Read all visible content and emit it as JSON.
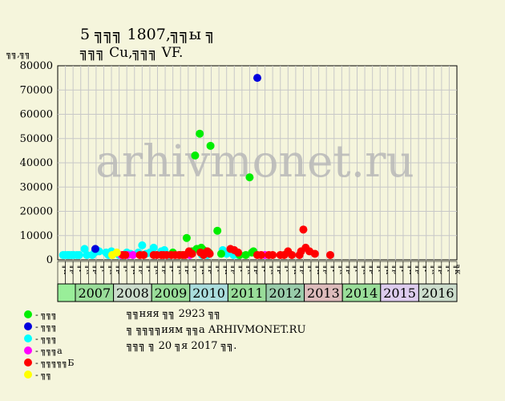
{
  "header": {
    "title_line1": "5 ╗╗╗ 1807,╗╗ы ╗",
    "title_line2": "╗╗╗ Cu,╗╗╗ VF.",
    "y_unit": "╗╗,╗╗",
    "watermark": "arhivmonet.ru"
  },
  "legend": [
    {
      "label": "- ╗╗╗",
      "color": "#00ee00"
    },
    {
      "label": "- ╗╗╗",
      "color": "#0000dd"
    },
    {
      "label": "- ╗╗╗",
      "color": "#00ffff"
    },
    {
      "label": "- ╗╗╗а",
      "color": "#ff00ff"
    },
    {
      "label": "- ╗╗╗╗╗Б",
      "color": "#ff0000"
    },
    {
      "label": "- ╗╗",
      "color": "#ffff00"
    }
  ],
  "notes": [
    "╗╗няя ╗╗ 2923 ╗╗",
    "╗ ╗╗╗╗иям ╗╗а ARHIVMONET.RU",
    "╗╗╗ ╗ 20 ╗я 2017 ╗╗."
  ],
  "chart_data": {
    "type": "scatter",
    "ylim": [
      0,
      80000
    ],
    "y_ticks": [
      0,
      10000,
      20000,
      30000,
      40000,
      50000,
      60000,
      70000,
      80000
    ],
    "quarter_labels": [
      "╗к",
      "╗р",
      "╗г",
      "╗к",
      "╗р",
      "╗г",
      "╗к",
      "╗р",
      "╗г",
      "╗к",
      "╗р",
      "╗г",
      "╗к",
      "╗р",
      "╗г",
      "╗к",
      "╗р",
      "╗г",
      "╗к",
      "╗р",
      "╗г",
      "╗к",
      "╗р",
      "╗г",
      "╗к",
      "╗р",
      "╗г",
      "╗к",
      "╗р",
      "╗г",
      "╗к",
      "╗р",
      "╗г",
      "╗к",
      "╗р",
      "╗г",
      "╗к",
      "╗р",
      "╗г",
      "╗к",
      "╗р",
      "╗г",
      "╗к",
      "╗р",
      "╗г",
      "╗к",
      "╗р",
      "╗г",
      "╗к",
      "╗р",
      "╗г",
      "╗к"
    ],
    "years": [
      {
        "label": "",
        "color": "#99ee99"
      },
      {
        "label": "2007",
        "color": "#99dd99"
      },
      {
        "label": "2008",
        "color": "#ccddcc"
      },
      {
        "label": "2009",
        "color": "#99dd99"
      },
      {
        "label": "2010",
        "color": "#aadddd"
      },
      {
        "label": "2011",
        "color": "#99dd99"
      },
      {
        "label": "2012",
        "color": "#99ccaa"
      },
      {
        "label": "2013",
        "color": "#ddbbbb"
      },
      {
        "label": "2014",
        "color": "#99dd99"
      },
      {
        "label": "2015",
        "color": "#ddccee"
      },
      {
        "label": "2016",
        "color": "#ccddcc"
      }
    ],
    "series": [
      {
        "color": "#00ffff",
        "points": [
          [
            0.2,
            2000
          ],
          [
            0.5,
            2000
          ],
          [
            0.8,
            2000
          ],
          [
            1.0,
            2000
          ],
          [
            1.3,
            2000
          ],
          [
            1.6,
            2000
          ],
          [
            2.0,
            2000
          ],
          [
            2.3,
            2000
          ],
          [
            3.0,
            4500
          ],
          [
            3.3,
            2000
          ],
          [
            4.0,
            2000
          ],
          [
            4.3,
            3000
          ],
          [
            4.6,
            4000
          ],
          [
            4.9,
            3500
          ],
          [
            5.8,
            3000
          ],
          [
            6.1,
            2000
          ],
          [
            6.5,
            3500
          ],
          [
            7.5,
            2000
          ],
          [
            8.5,
            3000
          ],
          [
            9.0,
            2500
          ],
          [
            10.0,
            3000
          ],
          [
            10.5,
            6000
          ],
          [
            11.0,
            2500
          ],
          [
            11.5,
            3000
          ],
          [
            12.0,
            5000
          ],
          [
            13.0,
            3500
          ],
          [
            13.4,
            4000
          ],
          [
            14.0,
            2000
          ],
          [
            18.3,
            2000
          ],
          [
            18.7,
            3000
          ],
          [
            19.0,
            2000
          ],
          [
            21.0,
            4000
          ],
          [
            21.5,
            2500
          ],
          [
            22.0,
            3000
          ],
          [
            22.4,
            2000
          ],
          [
            23.0,
            2000
          ]
        ]
      },
      {
        "color": "#00ee00",
        "points": [
          [
            14.5,
            3000
          ],
          [
            15.5,
            2000
          ],
          [
            16.3,
            9000
          ],
          [
            17.0,
            3500
          ],
          [
            17.4,
            43000
          ],
          [
            17.6,
            4500
          ],
          [
            18.0,
            52000
          ],
          [
            18.2,
            5000
          ],
          [
            18.5,
            4000
          ],
          [
            19.2,
            3000
          ],
          [
            19.4,
            47000
          ],
          [
            20.3,
            12000
          ],
          [
            20.8,
            2500
          ],
          [
            23.2,
            2000
          ],
          [
            24.0,
            2000
          ],
          [
            24.5,
            34000
          ],
          [
            24.8,
            3000
          ],
          [
            25.0,
            3500
          ]
        ]
      },
      {
        "color": "#ff00ff",
        "points": [
          [
            7.8,
            2000
          ],
          [
            8.6,
            2000
          ],
          [
            9.3,
            2000
          ],
          [
            16.7,
            2000
          ],
          [
            26.5,
            2000
          ]
        ]
      },
      {
        "color": "#ff0000",
        "points": [
          [
            8.0,
            2000
          ],
          [
            8.3,
            2000
          ],
          [
            10.2,
            2000
          ],
          [
            10.7,
            2000
          ],
          [
            12.0,
            2000
          ],
          [
            12.4,
            2000
          ],
          [
            13.0,
            2000
          ],
          [
            13.3,
            2000
          ],
          [
            13.7,
            2000
          ],
          [
            14.3,
            2000
          ],
          [
            14.8,
            2000
          ],
          [
            15.3,
            2000
          ],
          [
            15.8,
            2000
          ],
          [
            16.1,
            2000
          ],
          [
            16.6,
            3500
          ],
          [
            17.0,
            2500
          ],
          [
            18.1,
            3000
          ],
          [
            18.5,
            2000
          ],
          [
            19.3,
            2500
          ],
          [
            19.0,
            3500
          ],
          [
            22.0,
            4500
          ],
          [
            22.5,
            4000
          ],
          [
            23.0,
            3000
          ],
          [
            25.5,
            2000
          ],
          [
            26.0,
            2000
          ],
          [
            27.0,
            2000
          ],
          [
            27.5,
            2000
          ],
          [
            28.5,
            2000
          ],
          [
            29.0,
            2000
          ],
          [
            29.5,
            3500
          ],
          [
            30.0,
            2000
          ],
          [
            31.0,
            2000
          ],
          [
            31.2,
            3500
          ],
          [
            31.5,
            12500
          ],
          [
            31.8,
            5000
          ],
          [
            32.3,
            3500
          ],
          [
            33.0,
            2500
          ],
          [
            35.0,
            2000
          ]
        ]
      },
      {
        "color": "#0000dd",
        "points": [
          [
            4.4,
            4500
          ],
          [
            25.5,
            75000
          ]
        ]
      },
      {
        "color": "#ffff00",
        "points": [
          [
            6.6,
            2000
          ],
          [
            7.2,
            3000
          ]
        ]
      }
    ]
  }
}
